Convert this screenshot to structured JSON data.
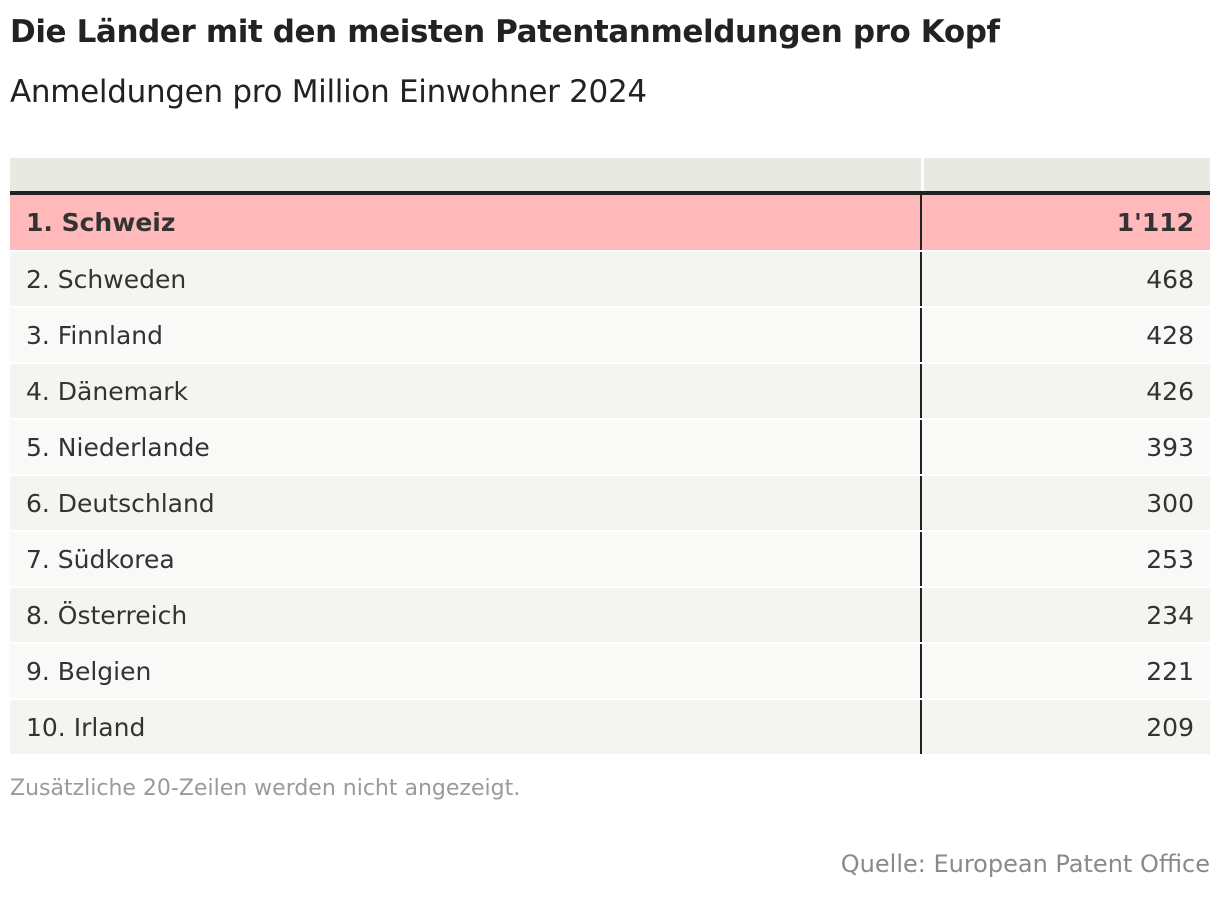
{
  "title": "Die Länder mit den meisten Patentanmeldungen pro Kopf",
  "subtitle": "Anmeldungen pro Million Einwohner 2024",
  "table": {
    "rows": [
      {
        "name": "1. Schweiz",
        "value": "1'112"
      },
      {
        "name": "2. Schweden",
        "value": "468"
      },
      {
        "name": "3. Finnland",
        "value": "428"
      },
      {
        "name": "4. Dänemark",
        "value": "426"
      },
      {
        "name": "5. Niederlande",
        "value": "393"
      },
      {
        "name": "6. Deutschland",
        "value": "300"
      },
      {
        "name": "7. Südkorea",
        "value": "253"
      },
      {
        "name": "8. Österreich",
        "value": "234"
      },
      {
        "name": "9. Belgien",
        "value": "221"
      },
      {
        "name": "10. Irland",
        "value": "209"
      }
    ]
  },
  "note": "Zusätzliche 20-Zeilen werden nicht angezeigt.",
  "source": "Quelle: European Patent Office",
  "colors": {
    "highlight": "#ffb9bb",
    "header": "#e9e9e4",
    "row_odd": "#f4f4f0",
    "row_even": "#f9f9f7"
  }
}
